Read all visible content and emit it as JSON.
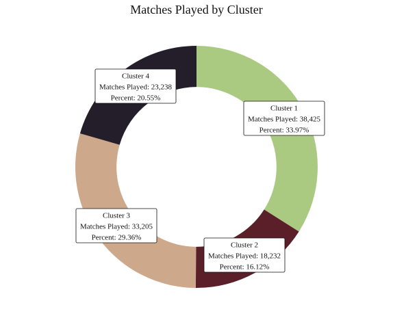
{
  "chart_data": {
    "type": "pie",
    "title": "Matches Played by Cluster",
    "hole": 0.66,
    "slices": [
      {
        "label": "Cluster 1",
        "value": 38425,
        "value_text": "Matches Played: 38,425",
        "percent_text": "Percent: 33.97%",
        "color": "#abca81"
      },
      {
        "label": "Cluster 2",
        "value": 18232,
        "value_text": "Matches Played: 18,232",
        "percent_text": "Percent: 16.12%",
        "color": "#5a1f29"
      },
      {
        "label": "Cluster 3",
        "value": 33205,
        "value_text": "Matches Played: 33,205",
        "percent_text": "Percent: 29.36%",
        "color": "#cda88a"
      },
      {
        "label": "Cluster 4",
        "value": 23238,
        "value_text": "Matches Played: 23,238",
        "percent_text": "Percent: 20.55%",
        "color": "#241d2a"
      }
    ]
  }
}
